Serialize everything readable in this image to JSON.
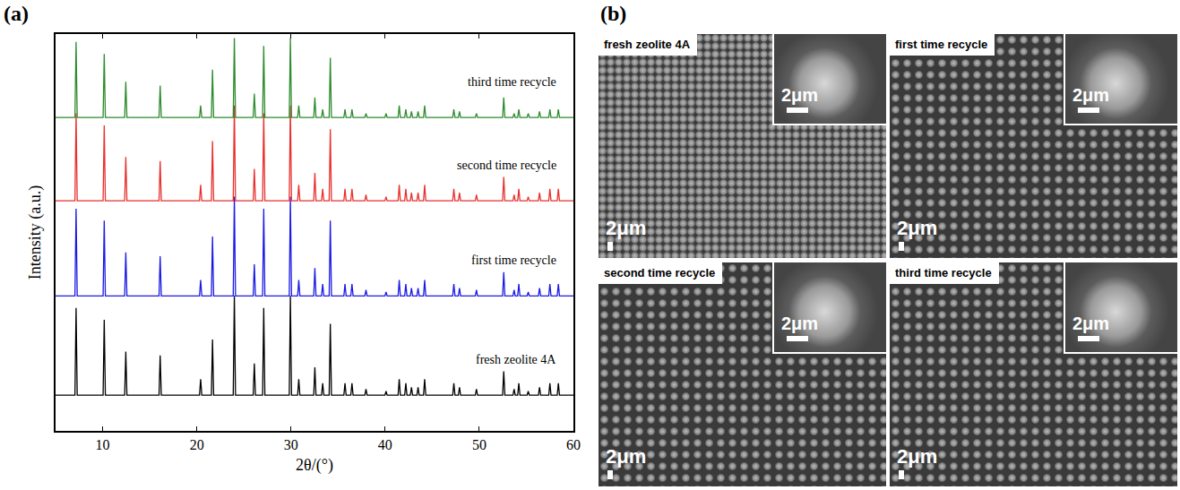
{
  "chart_data": {
    "type": "line",
    "panel_label": "(a)",
    "x_label": "2θ/(°)",
    "y_label": "Intensity (a.u.)",
    "xlim": [
      5,
      60
    ],
    "xticks": [
      10,
      20,
      30,
      40,
      50,
      60
    ],
    "ylim": [
      0,
      100
    ],
    "tick_labels": "x",
    "grid": false,
    "x": [
      7.18,
      10.17,
      12.46,
      16.11,
      20.41,
      21.67,
      23.99,
      26.11,
      27.11,
      29.94,
      30.83,
      32.54,
      33.37,
      34.18,
      35.74,
      36.48,
      37.97,
      40.1,
      41.5,
      42.2,
      42.8,
      43.5,
      44.2,
      47.3,
      47.9,
      49.7,
      52.6,
      53.7,
      54.2,
      55.2,
      56.4,
      57.5,
      58.4
    ],
    "series": [
      {
        "name": "fresh zeolite 4A",
        "color": "#000000",
        "baseline": 9,
        "values": [
          31,
          28,
          20,
          19,
          13,
          23,
          34,
          17,
          31,
          34,
          13,
          16,
          12,
          27,
          12,
          12,
          10.5,
          10,
          13,
          12,
          11,
          11,
          13,
          12,
          11,
          10.5,
          15,
          10.5,
          12,
          10,
          11,
          12,
          12
        ]
      },
      {
        "name": "first time recycle",
        "color": "#1a1ae6",
        "baseline": 34,
        "values": [
          56,
          53,
          45,
          44,
          38,
          49,
          59,
          42,
          56,
          59,
          38,
          41,
          37,
          53,
          37,
          37,
          35.5,
          35,
          38,
          37,
          36,
          36,
          38,
          37,
          36,
          35.5,
          40,
          35.5,
          37,
          35,
          36,
          37,
          37
        ]
      },
      {
        "name": "second time recycle",
        "color": "#e8302e",
        "baseline": 58,
        "values": [
          80,
          77,
          69,
          68,
          62,
          73,
          82,
          66,
          80,
          82,
          62,
          65,
          61,
          76,
          61,
          61,
          59.5,
          59,
          62,
          61,
          60,
          60,
          62,
          61,
          60,
          59.5,
          64,
          59.5,
          61,
          59,
          60,
          61,
          61
        ]
      },
      {
        "name": "third time recycle",
        "color": "#2e8b2e",
        "baseline": 79,
        "values": [
          98,
          95,
          88,
          87,
          82,
          91,
          99,
          85,
          97,
          99,
          82,
          84,
          81,
          94,
          81,
          81,
          80,
          80,
          82,
          81,
          80.5,
          80.5,
          82,
          81,
          80.5,
          80,
          84,
          80,
          81,
          80,
          80.5,
          81,
          81
        ]
      }
    ]
  },
  "images": {
    "panel_label": "(b)",
    "panels": [
      {
        "title": "fresh zeolite 4A",
        "scale_bar": "2μm",
        "inset_scale_bar": "2μm"
      },
      {
        "title": "first time recycle",
        "scale_bar": "2μm",
        "inset_scale_bar": "2μm"
      },
      {
        "title": "second time recycle",
        "scale_bar": "2μm",
        "inset_scale_bar": "2μm"
      },
      {
        "title": "third time recycle",
        "scale_bar": "2μm",
        "inset_scale_bar": "2μm"
      }
    ]
  }
}
